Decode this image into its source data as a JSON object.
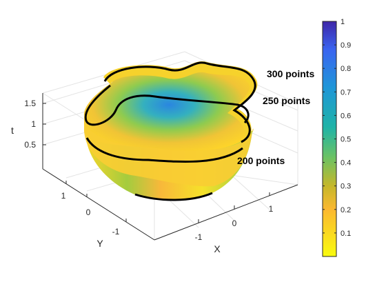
{
  "chart_data": {
    "type": "surface3d",
    "title": "",
    "axes": {
      "x": {
        "label": "X",
        "ticks": [
          "-1",
          "0",
          "1"
        ]
      },
      "y": {
        "label": "Y",
        "ticks": [
          "-1",
          "0",
          "1"
        ]
      },
      "t": {
        "label": "t",
        "ticks": [
          "0.5",
          "1",
          "1.5"
        ]
      }
    },
    "grid": true,
    "colormap": "parula (reversed)",
    "colorbar": {
      "ticks": [
        "0.1",
        "0.2",
        "0.3",
        "0.4",
        "0.5",
        "0.6",
        "0.7",
        "0.8",
        "0.9",
        "1"
      ],
      "range": [
        0,
        1
      ],
      "low_color": "#f9fb0e",
      "high_color": "#3e26a8"
    },
    "contour_lines": [
      {
        "label": "300 points",
        "t": 1.6
      },
      {
        "label": "250 points",
        "t": 1.35
      },
      {
        "label": "200 points",
        "t": 0.75
      }
    ]
  }
}
